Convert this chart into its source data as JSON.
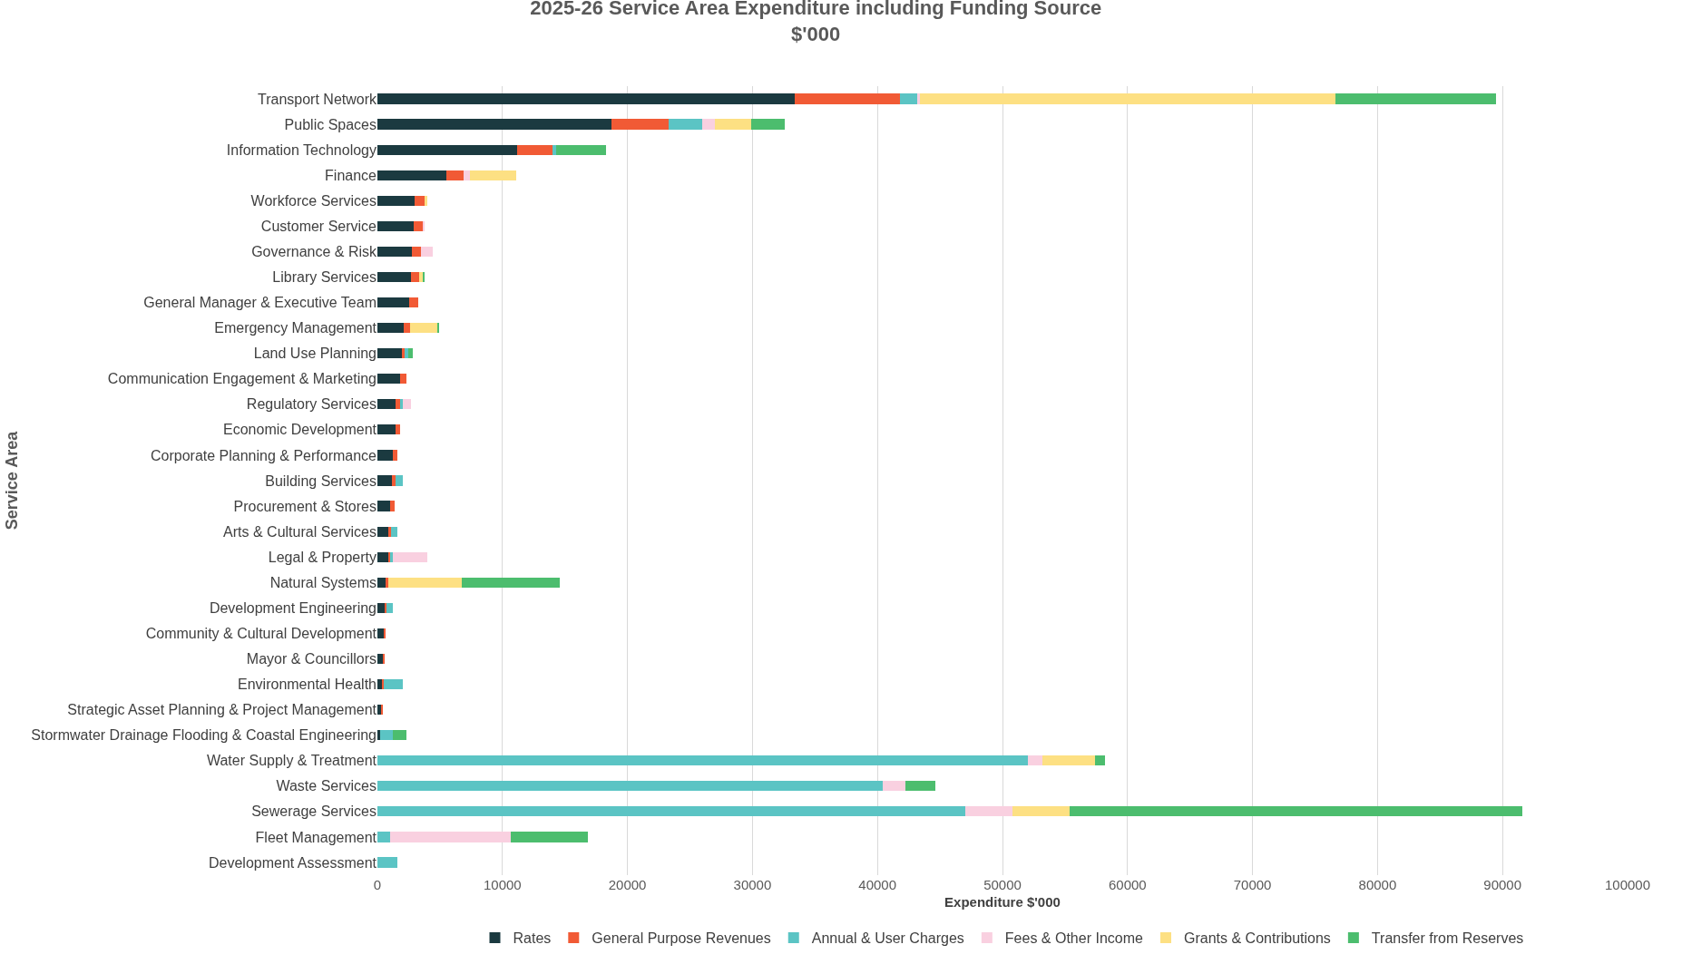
{
  "chart_data": {
    "type": "bar",
    "orientation": "horizontal",
    "stacked": true,
    "title": "2025-26 Service Area Expenditure including Funding Source\n$'000",
    "xlabel": "Expenditure $'000",
    "ylabel": "Service Area",
    "categories": [
      "Transport Network",
      "Public Spaces",
      "Information Technology",
      "Finance",
      "Workforce Services",
      "Customer Service",
      "Governance & Risk",
      "Library Services",
      "General Manager & Executive Team",
      "Emergency Management",
      "Land Use Planning",
      "Communication Engagement & Marketing",
      "Regulatory Services",
      "Economic Development",
      "Corporate Planning & Performance",
      "Building Services",
      "Procurement & Stores",
      "Arts & Cultural Services",
      "Legal & Property",
      "Natural Systems",
      "Development Engineering",
      "Community & Cultural Development",
      "Mayor & Councillors",
      "Environmental Health",
      "Strategic Asset Planning & Project Management",
      "Stormwater Drainage Flooding & Coastal Engineering",
      "Water Supply & Treatment",
      "Waste Services",
      "Sewerage Services",
      "Fleet Management",
      "Development Assessment"
    ],
    "series": [
      {
        "name": "Rates",
        "color": "#1b3a40",
        "values": [
          33400,
          18700,
          11200,
          5500,
          3000,
          2900,
          2750,
          2650,
          2550,
          2100,
          1950,
          1850,
          1450,
          1450,
          1250,
          1150,
          1050,
          850,
          850,
          650,
          600,
          500,
          500,
          350,
          300,
          200,
          0,
          0,
          0,
          0,
          0
        ]
      },
      {
        "name": "General Purpose Revenues",
        "color": "#f15a35",
        "values": [
          8400,
          4600,
          2800,
          1400,
          750,
          800,
          700,
          700,
          700,
          500,
          250,
          450,
          350,
          400,
          350,
          300,
          300,
          250,
          200,
          250,
          150,
          150,
          100,
          150,
          100,
          0,
          0,
          0,
          0,
          0,
          0
        ]
      },
      {
        "name": "Annual & User Charges",
        "color": "#5bc4c4",
        "values": [
          1400,
          2700,
          300,
          0,
          0,
          0,
          0,
          0,
          0,
          0,
          300,
          0,
          200,
          0,
          0,
          550,
          0,
          500,
          150,
          0,
          450,
          0,
          0,
          1500,
          0,
          1000,
          52000,
          40400,
          47000,
          1000,
          1600
        ]
      },
      {
        "name": "Fees & Other Income",
        "color": "#f9d0e0",
        "values": [
          200,
          1000,
          0,
          500,
          0,
          100,
          1000,
          0,
          0,
          0,
          0,
          0,
          650,
          0,
          0,
          0,
          0,
          0,
          2800,
          0,
          0,
          0,
          0,
          0,
          0,
          0,
          1200,
          1800,
          3800,
          9700,
          0
        ]
      },
      {
        "name": "Grants & Contributions",
        "color": "#fde083",
        "values": [
          33200,
          2900,
          0,
          3700,
          250,
          0,
          0,
          350,
          0,
          2200,
          0,
          0,
          0,
          0,
          0,
          0,
          0,
          0,
          0,
          5850,
          0,
          0,
          0,
          0,
          0,
          0,
          4200,
          0,
          4600,
          0,
          0
        ]
      },
      {
        "name": "Transfer from Reserves",
        "color": "#4cbd6e",
        "values": [
          12900,
          2700,
          4000,
          0,
          0,
          0,
          0,
          100,
          0,
          150,
          350,
          0,
          0,
          0,
          0,
          0,
          0,
          0,
          0,
          7850,
          0,
          0,
          0,
          0,
          0,
          1100,
          800,
          2400,
          36200,
          6100,
          0
        ]
      }
    ],
    "xlim": [
      0,
      100000
    ],
    "xticks": [
      0,
      10000,
      20000,
      30000,
      40000,
      50000,
      60000,
      70000,
      80000,
      90000,
      100000
    ],
    "grid": "x",
    "legend": "bottom"
  }
}
